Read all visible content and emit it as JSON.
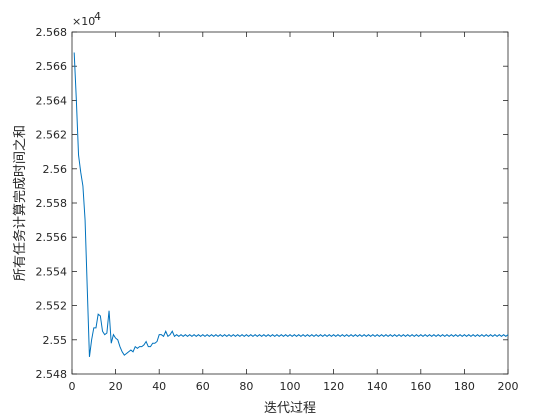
{
  "chart_data": {
    "type": "line",
    "title": "",
    "xlabel": "迭代过程",
    "ylabel": "所有任务计算完成时间之和",
    "xlim": [
      0,
      200
    ],
    "ylim": [
      25480,
      25680
    ],
    "y_exponent_base": "×10",
    "y_exponent_power": "4",
    "x_ticks": [
      0,
      20,
      40,
      60,
      80,
      100,
      120,
      140,
      160,
      180,
      200
    ],
    "x_tick_labels": [
      "0",
      "20",
      "40",
      "60",
      "80",
      "100",
      "120",
      "140",
      "160",
      "180",
      "200"
    ],
    "y_ticks": [
      25480,
      25500,
      25520,
      25540,
      25560,
      25580,
      25600,
      25620,
      25640,
      25660,
      25680
    ],
    "y_tick_labels": [
      "2.548",
      "2.55",
      "2.552",
      "2.554",
      "2.556",
      "2.558",
      "2.56",
      "2.562",
      "2.564",
      "2.566",
      "2.568"
    ],
    "grid": false,
    "colors": {
      "line": "#0072bd",
      "axis": "#262626"
    },
    "series": [
      {
        "x": [
          1,
          2,
          3,
          4,
          5,
          6,
          7,
          8,
          9,
          10,
          11,
          12,
          13,
          14,
          15,
          16,
          17,
          18,
          19,
          20,
          21,
          22,
          23,
          24,
          25,
          26,
          27,
          28,
          29,
          30,
          31,
          32,
          33,
          34,
          35,
          36,
          37,
          38,
          39,
          40,
          41,
          42,
          43,
          44,
          45,
          46,
          47,
          48,
          49,
          50
        ],
        "values": [
          25668,
          25640,
          25608,
          25598,
          25590,
          25570,
          25530,
          25490,
          25500,
          25507,
          25507,
          25515,
          25514,
          25505,
          25503,
          25504,
          25517,
          25498,
          25503,
          25501,
          25500,
          25496,
          25493,
          25491,
          25492,
          25493,
          25494,
          25493,
          25496,
          25495,
          25496,
          25496,
          25497,
          25499,
          25496,
          25496,
          25498,
          25498,
          25499,
          25503,
          25503,
          25502,
          25505,
          25502,
          25503,
          25505,
          25502,
          25503,
          25502,
          25503
        ]
      }
    ]
  }
}
